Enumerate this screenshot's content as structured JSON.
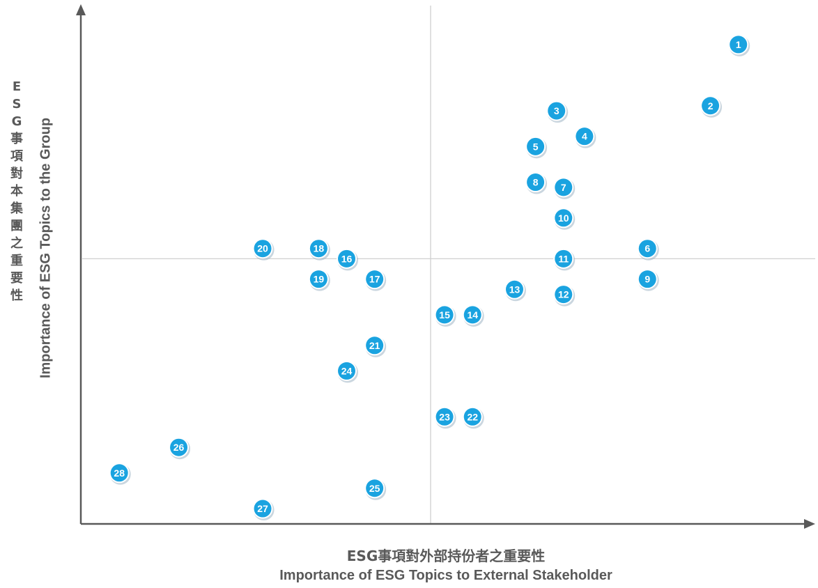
{
  "chart_data": {
    "type": "scatter",
    "x_axis_label_zh": "ESG事項對外部持份者之重要性",
    "x_axis_label_en": "Importance of ESG Topics to External Stakeholder",
    "y_axis_label_zh": "ESG事項對本集團之重要性",
    "y_axis_label_en": "Importance of ESG Topics to the Group",
    "xlim": [
      0,
      10
    ],
    "ylim": [
      0,
      10
    ],
    "grid": false,
    "quadrant_lines": {
      "x": 5,
      "y": 5.2
    },
    "marker_color": "#1aa3e0",
    "points": [
      {
        "label": "1",
        "x": 9.4,
        "y": 9.4
      },
      {
        "label": "2",
        "x": 9.0,
        "y": 8.2
      },
      {
        "label": "3",
        "x": 6.8,
        "y": 8.1
      },
      {
        "label": "4",
        "x": 7.2,
        "y": 7.6
      },
      {
        "label": "5",
        "x": 6.5,
        "y": 7.4
      },
      {
        "label": "6",
        "x": 8.1,
        "y": 5.4
      },
      {
        "label": "7",
        "x": 6.9,
        "y": 6.6
      },
      {
        "label": "8",
        "x": 6.5,
        "y": 6.7
      },
      {
        "label": "9",
        "x": 8.1,
        "y": 4.8
      },
      {
        "label": "10",
        "x": 6.9,
        "y": 6.0
      },
      {
        "label": "11",
        "x": 6.9,
        "y": 5.2
      },
      {
        "label": "12",
        "x": 6.9,
        "y": 4.5
      },
      {
        "label": "13",
        "x": 6.2,
        "y": 4.6
      },
      {
        "label": "14",
        "x": 5.6,
        "y": 4.1
      },
      {
        "label": "15",
        "x": 5.2,
        "y": 4.1
      },
      {
        "label": "16",
        "x": 3.8,
        "y": 5.2
      },
      {
        "label": "17",
        "x": 4.2,
        "y": 4.8
      },
      {
        "label": "18",
        "x": 3.4,
        "y": 5.4
      },
      {
        "label": "19",
        "x": 3.4,
        "y": 4.8
      },
      {
        "label": "20",
        "x": 2.6,
        "y": 5.4
      },
      {
        "label": "21",
        "x": 4.2,
        "y": 3.5
      },
      {
        "label": "22",
        "x": 5.6,
        "y": 2.1
      },
      {
        "label": "23",
        "x": 5.2,
        "y": 2.1
      },
      {
        "label": "24",
        "x": 3.8,
        "y": 3.0
      },
      {
        "label": "25",
        "x": 4.2,
        "y": 0.7
      },
      {
        "label": "26",
        "x": 1.4,
        "y": 1.5
      },
      {
        "label": "27",
        "x": 2.6,
        "y": 0.3
      },
      {
        "label": "28",
        "x": 0.55,
        "y": 1.0
      }
    ]
  }
}
